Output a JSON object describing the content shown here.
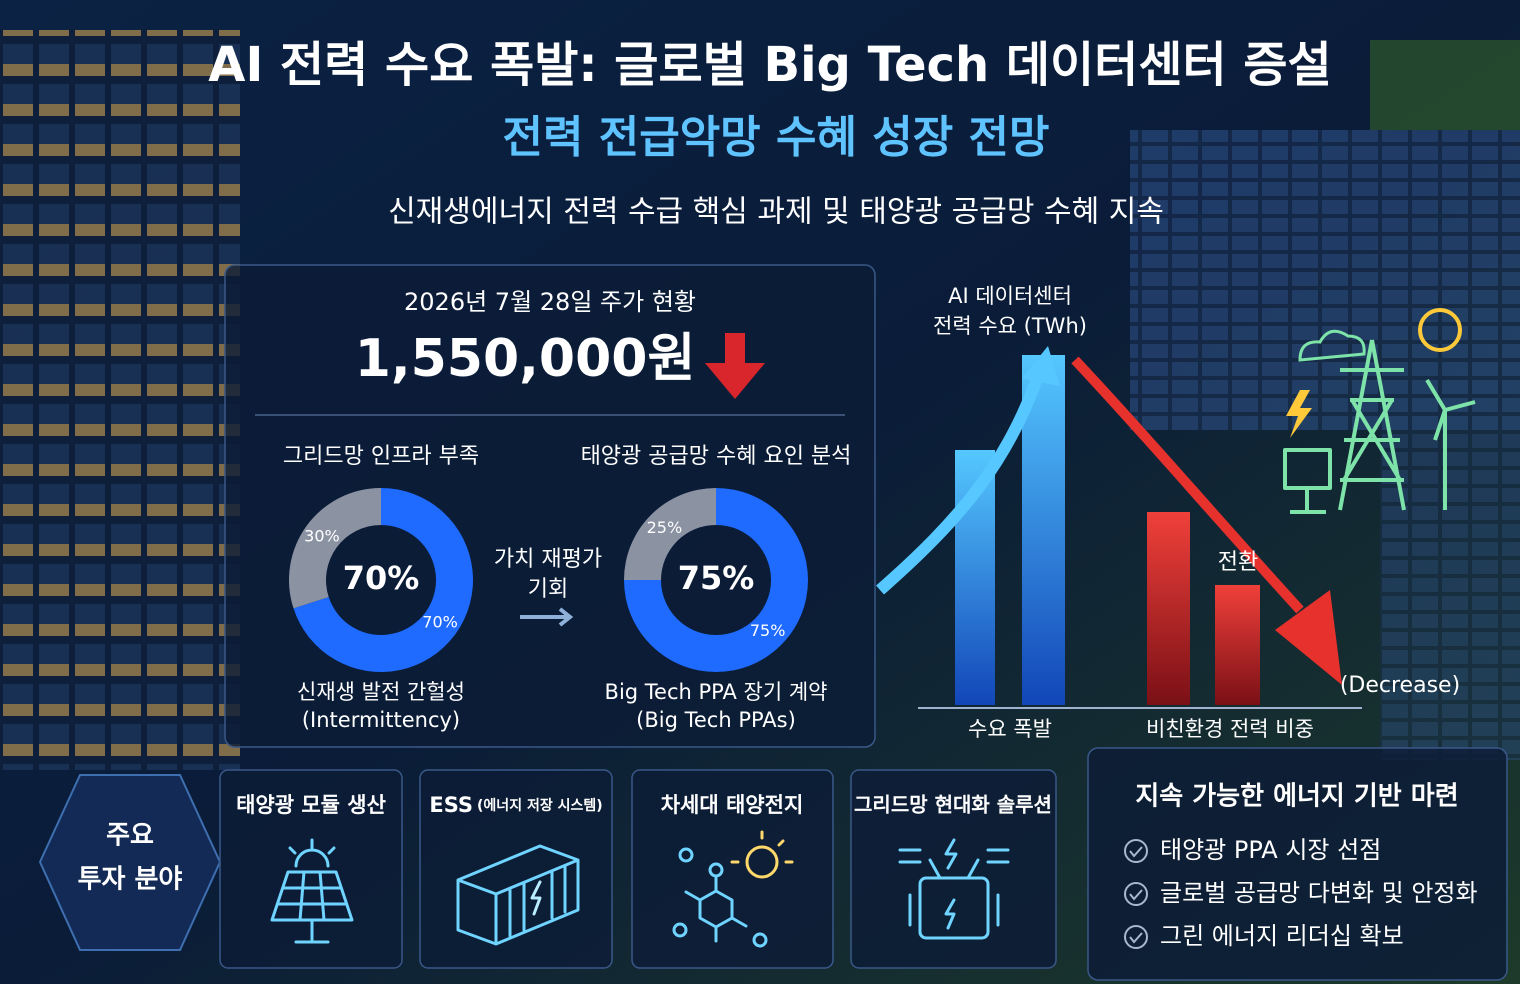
{
  "header": {
    "title_line1": "AI 전력 수요 폭발: 글로벌 Big Tech 데이터센터 증설",
    "title_line2": "전력 전급악망 수혜 성장 전망",
    "subtitle": "신재생에너지 전력 수급 핵심 과제 및 태양광 공급망 수혜 지속"
  },
  "stock": {
    "label": "2026년 7월 28일 주가 현황",
    "price": "1,550,000원"
  },
  "donuts": [
    {
      "title": "그리드망 인프라 부족",
      "segments": [
        {
          "value": 70,
          "label": "70%",
          "color": "#1f6bff"
        },
        {
          "value": 30,
          "label": "30%",
          "color": "#8b93a3"
        }
      ],
      "caption": [
        "신재생 발전 간헐성",
        "(Intermittency)"
      ]
    },
    {
      "title": "태양광 공급망 수혜 요인 분석",
      "segments": [
        {
          "value": 75,
          "label": "75%",
          "color": "#1f6bff"
        },
        {
          "value": 25,
          "label": "25%",
          "color": "#8b93a3"
        }
      ],
      "caption": [
        "Big Tech PPA 장기 계약",
        "(Big Tech PPAs)"
      ]
    }
  ],
  "arrow_label": [
    "가치 재평가",
    "기회"
  ],
  "demand_chart": {
    "title": [
      "AI 데이터센터",
      "전력 수요 (TWh)"
    ],
    "label_switch": "전환",
    "label_decrease": "(Decrease)",
    "categories": [
      "수요 폭발",
      "비친환경 전력 비중"
    ]
  },
  "investment": {
    "heading": [
      "주요",
      "투자 분야"
    ],
    "items": [
      {
        "title": "태양광 모듈 생산"
      },
      {
        "title": "ESS",
        "subtitle": "(에너지 저장 시스템)"
      },
      {
        "title": "차세대 태양전지"
      },
      {
        "title": "그리드망 현대화 솔루션"
      }
    ]
  },
  "sustainability": {
    "title": "지속 가능한 에너지 기반 마련",
    "items": [
      "태양광 PPA 시장 선점",
      "글로벌 공급망 다변화 및 안정화",
      "그린 에너지 리더십 확보"
    ]
  }
}
